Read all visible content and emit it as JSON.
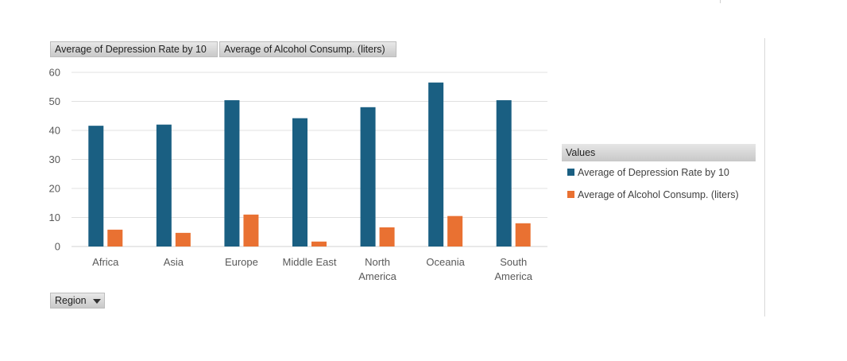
{
  "field_buttons": {
    "depression": "Average of Depression Rate by 10",
    "alcohol": "Average of Alcohol Consump. (liters)",
    "region": "Region"
  },
  "legend": {
    "title": "Values",
    "items": [
      {
        "label": "Average of Depression Rate by 10",
        "color": "#1a5f82"
      },
      {
        "label": "Average of Alcohol Consump. (liters)",
        "color": "#e97132"
      }
    ]
  },
  "chart_data": {
    "type": "bar",
    "categories": [
      [
        "Africa"
      ],
      [
        "Asia"
      ],
      [
        "Europe"
      ],
      [
        "Middle East"
      ],
      [
        "North",
        "America"
      ],
      [
        "Oceania"
      ],
      [
        "South",
        "America"
      ]
    ],
    "series": [
      {
        "name": "Average of Depression Rate by 10",
        "color": "#1a5f82",
        "values": [
          41.6,
          42.0,
          50.4,
          44.2,
          48.0,
          56.5,
          50.4
        ]
      },
      {
        "name": "Average of Alcohol Consump. (liters)",
        "color": "#e97132",
        "values": [
          5.8,
          4.7,
          11.0,
          1.7,
          6.6,
          10.5,
          8.0
        ]
      }
    ],
    "ylim": [
      0,
      60
    ],
    "yticks": [
      0,
      10,
      20,
      30,
      40,
      50,
      60
    ],
    "grid": true,
    "legend_position": "right"
  }
}
